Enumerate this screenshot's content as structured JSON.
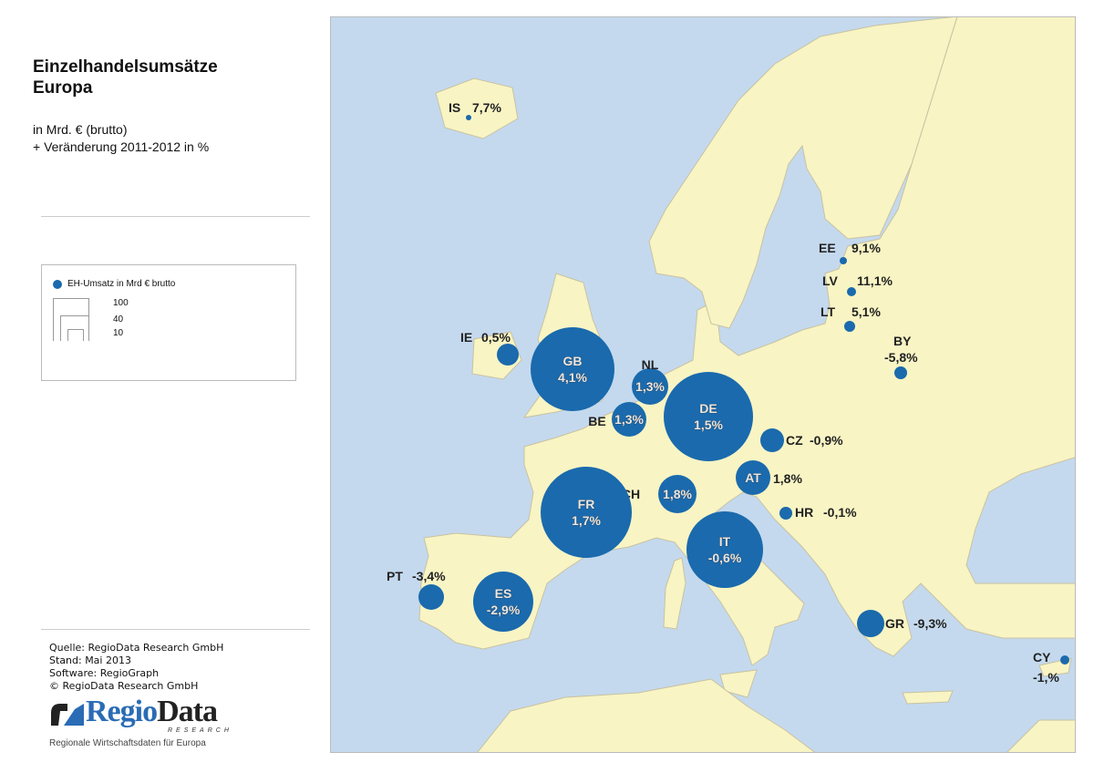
{
  "title": [
    "Einzelhandelsumsätze",
    "Europa"
  ],
  "subtitle": [
    "in Mrd. € (brutto)",
    "+ Veränderung 2011-2012 in %"
  ],
  "legend": {
    "title": "EH-Umsatz in Mrd € brutto",
    "values": [
      "100",
      "40",
      "10"
    ],
    "bubble_color": "#1a6aad"
  },
  "source": [
    "Quelle: RegioData Research GmbH",
    "Stand: Mai 2013",
    "Software: RegioGraph",
    "© RegioData Research GmbH"
  ],
  "logo": {
    "brand_a": "Regio",
    "brand_b": "Data",
    "brand_sub": "RESEARCH"
  },
  "tagline": "Regionale Wirtschaftsdaten für Europa",
  "colors": {
    "sea": "#c4d9ee",
    "land": "#f8f4c4",
    "bubble": "#1a6aad"
  },
  "countries": [
    {
      "code": "IS",
      "change": "7,7%"
    },
    {
      "code": "IE",
      "change": "0,5%"
    },
    {
      "code": "GB",
      "change": "4,1%"
    },
    {
      "code": "NL",
      "change": "1,3%"
    },
    {
      "code": "BE",
      "change": "1,3%"
    },
    {
      "code": "DE",
      "change": "1,5%"
    },
    {
      "code": "CZ",
      "change": "-0,9%"
    },
    {
      "code": "AT",
      "change": "1,8%"
    },
    {
      "code": "CH",
      "change": "1,8%"
    },
    {
      "code": "FR",
      "change": "1,7%"
    },
    {
      "code": "IT",
      "change": "-0,6%"
    },
    {
      "code": "HR",
      "change": "-0,1%"
    },
    {
      "code": "PT",
      "change": "-3,4%"
    },
    {
      "code": "ES",
      "change": "-2,9%"
    },
    {
      "code": "GR",
      "change": "-9,3%"
    },
    {
      "code": "CY",
      "change": "-1,%"
    },
    {
      "code": "EE",
      "change": "9,1%"
    },
    {
      "code": "LV",
      "change": "11,1%"
    },
    {
      "code": "LT",
      "change": "5,1%"
    },
    {
      "code": "BY",
      "change": "-5,8%"
    }
  ]
}
